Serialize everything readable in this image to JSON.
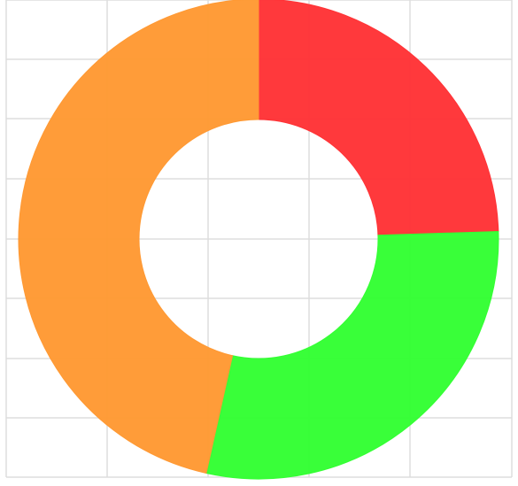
{
  "chart_data": {
    "type": "pie",
    "donut": true,
    "grid": true,
    "legend": "none",
    "slices": [
      {
        "value": 24.5,
        "color": "#ff3336"
      },
      {
        "value": 29.0,
        "color": "#33ff33"
      },
      {
        "value": 46.5,
        "color": "#ff9933"
      }
    ]
  }
}
